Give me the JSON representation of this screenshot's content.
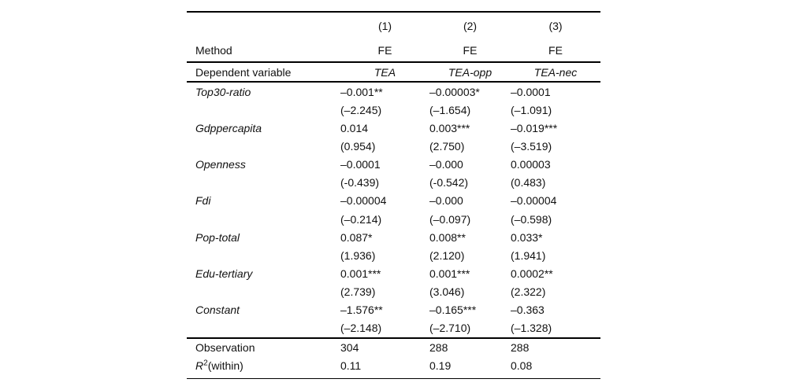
{
  "colors": {
    "background": "#ffffff",
    "text": "#000000",
    "rule": "#000000"
  },
  "table": {
    "columns": [
      "(1)",
      "(2)",
      "(3)"
    ],
    "method": {
      "label": "Method",
      "values": [
        "FE",
        "FE",
        "FE"
      ]
    },
    "dependent": {
      "label": "Dependent variable",
      "values": [
        "TEA",
        "TEA-opp",
        "TEA-nec"
      ]
    },
    "rows": [
      {
        "label": "Top30-ratio",
        "coefs": [
          "–0.001**",
          "–0.00003*",
          "–0.0001"
        ],
        "tstats": [
          "(–2.245)",
          "(–1.654)",
          "(–1.091)"
        ]
      },
      {
        "label": "Gdppercapita",
        "coefs": [
          "0.014",
          "0.003***",
          "–0.019***"
        ],
        "tstats": [
          "(0.954)",
          "(2.750)",
          "(–3.519)"
        ]
      },
      {
        "label": "Openness",
        "coefs": [
          "–0.0001",
          "–0.000",
          "0.00003"
        ],
        "tstats": [
          "(-0.439)",
          "(-0.542)",
          "(0.483)"
        ]
      },
      {
        "label": "Fdi",
        "coefs": [
          "–0.00004",
          "–0.000",
          "–0.00004"
        ],
        "tstats": [
          "(–0.214)",
          "(–0.097)",
          "(–0.598)"
        ]
      },
      {
        "label": "Pop-total",
        "coefs": [
          "0.087*",
          "0.008**",
          "0.033*"
        ],
        "tstats": [
          "(1.936)",
          "(2.120)",
          "(1.941)"
        ]
      },
      {
        "label": "Edu-tertiary",
        "coefs": [
          "0.001***",
          "0.001***",
          "0.0002**"
        ],
        "tstats": [
          "(2.739)",
          "(3.046)",
          "(2.322)"
        ]
      },
      {
        "label": "Constant",
        "coefs": [
          "–1.576**",
          "–0.165***",
          "–0.363"
        ],
        "tstats": [
          "(–2.148)",
          "(–2.710)",
          "(–1.328)"
        ]
      }
    ],
    "footer": {
      "observation": {
        "label": "Observation",
        "values": [
          "304",
          "288",
          "288"
        ]
      },
      "r_squared": {
        "label_base": "R",
        "label_sup": "2",
        "label_rest": "(within)",
        "values": [
          "0.11",
          "0.19",
          "0.08"
        ]
      }
    }
  }
}
